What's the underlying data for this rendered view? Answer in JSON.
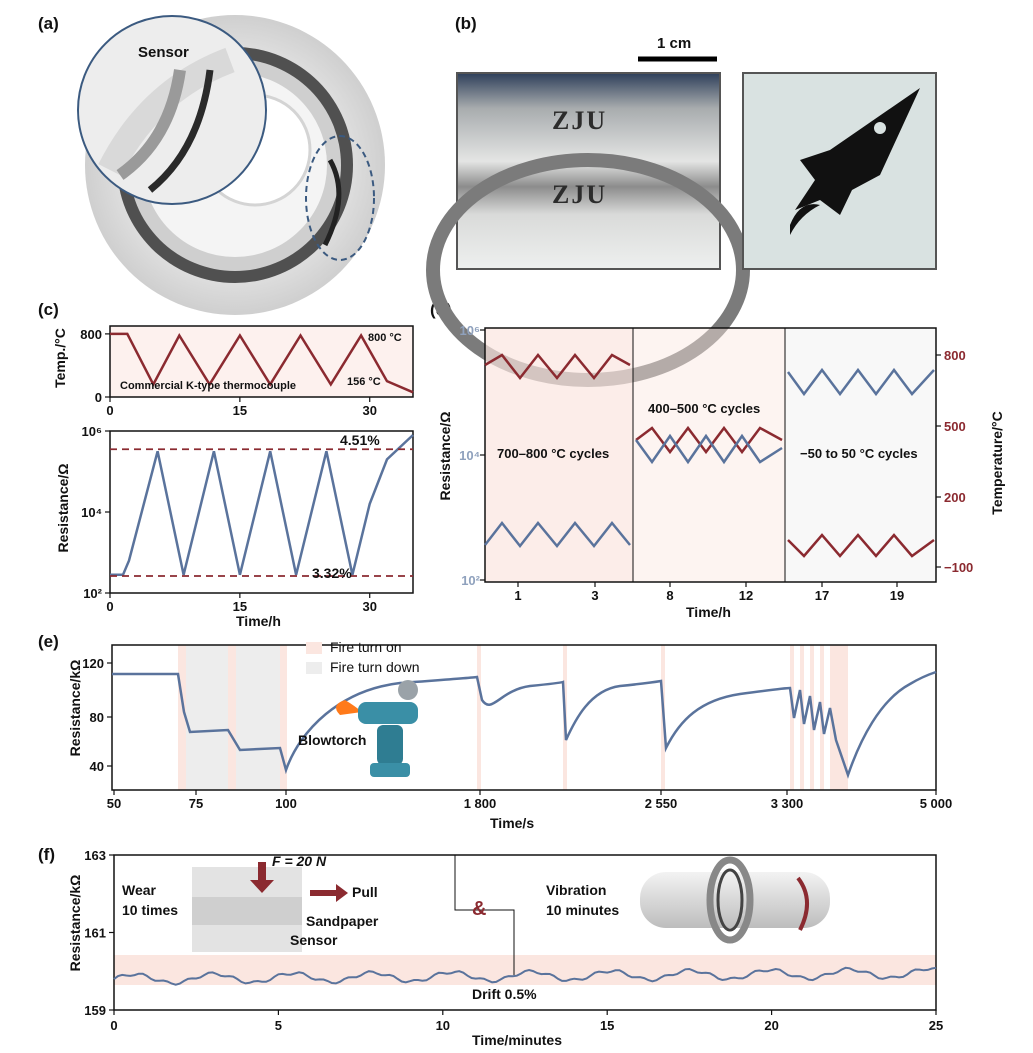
{
  "panels": {
    "a": "(a)",
    "b": "(b)",
    "c": "(c)",
    "d": "(d)",
    "e": "(e)",
    "f": "(f)"
  },
  "panel_a": {
    "sensor_label": "Sensor"
  },
  "panel_b": {
    "scale_label": "1 cm",
    "stamp_text": "ZJU"
  },
  "colors": {
    "blue": "#5a739c",
    "red": "#8b2a30",
    "pink_band": "#fbe6e0",
    "grey_band": "#ededed"
  },
  "chart_data": [
    {
      "id": "c-top",
      "type": "line",
      "ylabel": "Temp./°C",
      "xlim": [
        0,
        35
      ],
      "ylim": [
        0,
        900
      ],
      "xticks": [
        "0",
        "15",
        "30"
      ],
      "yticks": [
        "0",
        "800"
      ],
      "annotations": [
        "800 °C",
        "156 °C",
        "Commercial K-type thermocouple"
      ],
      "series": [
        {
          "color": "#8b2a30",
          "x": [
            0,
            2,
            5,
            8,
            11.5,
            15,
            18.5,
            22,
            25.5,
            29,
            32,
            35
          ],
          "y": [
            800,
            800,
            160,
            780,
            160,
            780,
            160,
            780,
            160,
            780,
            200,
            60
          ]
        }
      ]
    },
    {
      "id": "c-bottom",
      "type": "line",
      "xlabel": "Time/h",
      "ylabel": "Resistance/Ω",
      "xlim": [
        0,
        35
      ],
      "ylim_log10": [
        2,
        6
      ],
      "xticks": [
        "0",
        "15",
        "30"
      ],
      "yticks": [
        "10²",
        "10⁴",
        "10⁶"
      ],
      "annotations": [
        "4.51%",
        "3.32%"
      ],
      "series": [
        {
          "color": "#5a739c",
          "x": [
            0,
            1.5,
            2.2,
            5.5,
            8.5,
            12,
            15,
            18.5,
            21.5,
            25,
            28,
            30,
            32,
            35
          ],
          "logy": [
            2.45,
            2.45,
            2.8,
            5.5,
            2.45,
            5.5,
            2.45,
            5.5,
            2.45,
            5.5,
            2.45,
            4.2,
            5.3,
            5.9
          ]
        }
      ],
      "ref_lines_logy": [
        5.55,
        2.42
      ]
    },
    {
      "id": "d",
      "type": "line",
      "xlabel": "Time/h",
      "ylabel": "Resistance/Ω",
      "y2label": "Temperature/°C",
      "xticks": [
        "1",
        "3",
        "8",
        "12",
        "17",
        "19"
      ],
      "yticks_left": [
        "10²",
        "10⁴",
        "10⁶"
      ],
      "yticks_right": [
        "−100",
        "200",
        "500",
        "800"
      ],
      "regions": [
        "700–800 °C cycles",
        "400–500 °C cycles",
        "−50 to 50 °C cycles"
      ]
    },
    {
      "id": "e",
      "type": "line",
      "xlabel": "Time/s",
      "ylabel": "Resistance/kΩ",
      "xticks": [
        "50",
        "75",
        "100",
        "1 800",
        "2 550",
        "3 300",
        "5 000"
      ],
      "yticks": [
        "40",
        "80",
        "120"
      ],
      "legend": [
        "Fire turn on",
        "Fire turn down"
      ],
      "annotations": [
        "Blowtorch"
      ]
    },
    {
      "id": "f",
      "type": "line",
      "xlabel": "Time/minutes",
      "ylabel": "Resistance/kΩ",
      "xlim": [
        0,
        25
      ],
      "ylim": [
        159,
        163
      ],
      "xticks": [
        "0",
        "5",
        "10",
        "15",
        "20",
        "25"
      ],
      "yticks": [
        "159",
        "161",
        "163"
      ],
      "annotations": [
        "Wear",
        "10 times",
        "F = 20 N",
        "Pull",
        "Sandpaper",
        "Sensor",
        "&",
        "Vibration",
        "10 minutes",
        "Drift 0.5%"
      ]
    }
  ]
}
